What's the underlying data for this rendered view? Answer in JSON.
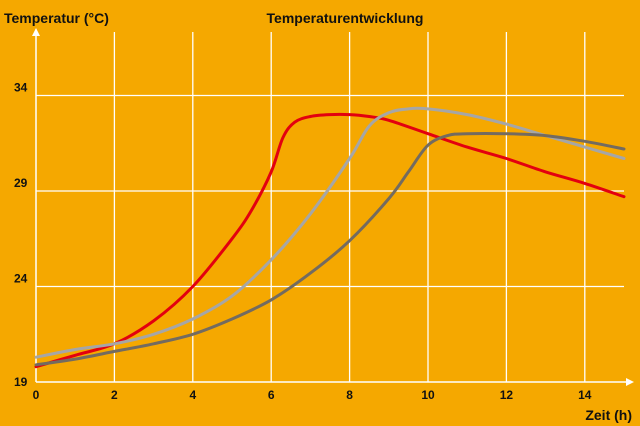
{
  "chart_data": {
    "type": "line",
    "title": "Temperaturentwicklung",
    "xlabel": "Zeit (h)",
    "ylabel": "Temperatur (°C)",
    "xlim": [
      0,
      15
    ],
    "ylim": [
      19,
      36
    ],
    "xticks": [
      0,
      2,
      4,
      6,
      8,
      10,
      12,
      14
    ],
    "yticks": [
      19,
      24,
      29,
      34
    ],
    "xtick_labels": [
      "0",
      "2",
      "4",
      "6",
      "8",
      "10",
      "12",
      "14"
    ],
    "ytick_labels": [
      "19",
      "24",
      "29",
      "34"
    ],
    "grid": true,
    "legend": "none",
    "colors": {
      "background": "#f5a800",
      "grid": "#ffffff",
      "axis": "#ffffff",
      "text": "#111111"
    },
    "series": [
      {
        "color": "#e3000f",
        "x": [
          0,
          1,
          2,
          3,
          4,
          5,
          5.5,
          6,
          6.3,
          6.6,
          7,
          7.5,
          8,
          8.5,
          9,
          10,
          11,
          12,
          13,
          14,
          15
        ],
        "y": [
          19.8,
          20.4,
          21.0,
          22.2,
          24.0,
          26.5,
          28.0,
          30.0,
          31.8,
          32.6,
          32.9,
          33.0,
          33.0,
          32.9,
          32.7,
          32.0,
          31.3,
          30.7,
          30.0,
          29.4,
          28.7
        ]
      },
      {
        "color": "#a6a6a6",
        "x": [
          0,
          1,
          2,
          3,
          4,
          5,
          6,
          7,
          8,
          8.5,
          9,
          9.5,
          10,
          11,
          12,
          13,
          14,
          15
        ],
        "y": [
          20.3,
          20.7,
          21.0,
          21.5,
          22.3,
          23.5,
          25.4,
          27.8,
          30.7,
          32.4,
          33.1,
          33.3,
          33.3,
          33.0,
          32.5,
          31.9,
          31.3,
          30.7
        ]
      },
      {
        "color": "#736b60",
        "x": [
          0,
          1,
          2,
          3,
          4,
          5,
          6,
          7,
          8,
          9,
          9.5,
          10,
          10.5,
          11,
          12,
          13,
          14,
          15
        ],
        "y": [
          19.9,
          20.2,
          20.6,
          21.0,
          21.5,
          22.3,
          23.3,
          24.7,
          26.4,
          28.6,
          30.0,
          31.4,
          31.9,
          32.0,
          32.0,
          31.9,
          31.6,
          31.2
        ]
      }
    ]
  }
}
